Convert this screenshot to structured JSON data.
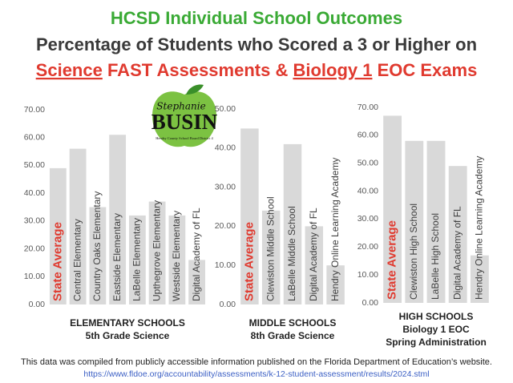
{
  "header": {
    "line1": "HCSD Individual School Outcomes",
    "line2": "Percentage of Students who Scored a 3 or Higher on",
    "line3": [
      "Science",
      " FAST Assessments & ",
      "Biology 1",
      " EOC Exams"
    ]
  },
  "logo": {
    "script": "Stephanie",
    "name": "BUSIN",
    "caption": "Hendry County School Board District 4"
  },
  "chart_data": [
    {
      "type": "bar",
      "xlabel": [
        "ELEMENTARY SCHOOLS",
        "5th Grade Science"
      ],
      "categories": [
        "State Average",
        "Central Elementary",
        "Country Oaks Elementary",
        "Eastside Elementary",
        "LaBelle Elementary",
        "Upthegrove Elementary",
        "Westside Elementary",
        "Digital Academy of FL"
      ],
      "values": [
        49,
        56,
        35,
        61,
        32,
        37,
        32,
        16
      ],
      "color": "#d9d9d9",
      "ylim": [
        0,
        70
      ],
      "yticks": [
        {
          "value": 0,
          "label": "0.00"
        },
        {
          "value": 10,
          "label": "10.00"
        },
        {
          "value": 20,
          "label": "20.00"
        },
        {
          "value": 30,
          "label": "30.00"
        },
        {
          "value": 40,
          "label": "40.00"
        },
        {
          "value": 50,
          "label": "50.00"
        },
        {
          "value": 60,
          "label": "60.00"
        },
        {
          "value": 70,
          "label": "70.00"
        }
      ]
    },
    {
      "type": "bar",
      "xlabel": [
        "MIDDLE SCHOOLS",
        "8th Grade Science"
      ],
      "categories": [
        "State Average",
        "Clewiston Middle School",
        "LaBelle  Middle School",
        "Digital Academy of FL",
        "Hendry Online Learning Academy"
      ],
      "values": [
        45,
        24,
        41,
        20,
        10
      ],
      "color": "#d9d9d9",
      "ylim": [
        0,
        50
      ],
      "yticks": [
        {
          "value": 0,
          "label": "0.00"
        },
        {
          "value": 10,
          "label": "10.00"
        },
        {
          "value": 20,
          "label": "20.00"
        },
        {
          "value": 30,
          "label": "30.00"
        },
        {
          "value": 40,
          "label": "40.00"
        },
        {
          "value": 50,
          "label": "50.00"
        }
      ]
    },
    {
      "type": "bar",
      "xlabel": [
        "HIGH SCHOOLS",
        "Biology 1 EOC",
        "Spring Administration"
      ],
      "categories": [
        "State Average",
        "Clewiston High School",
        "LaBelle High School",
        "Digital Academy of FL",
        "Hendry Online Learning Academy"
      ],
      "values": [
        67,
        58,
        58,
        49,
        17
      ],
      "color": "#d9d9d9",
      "ylim": [
        0,
        70
      ],
      "yticks": [
        {
          "value": 0,
          "label": "0.00"
        },
        {
          "value": 10,
          "label": "10.00"
        },
        {
          "value": 20,
          "label": "20.00"
        },
        {
          "value": 30,
          "label": "30.00"
        },
        {
          "value": 40,
          "label": "40.00"
        },
        {
          "value": 50,
          "label": "50.00"
        },
        {
          "value": 60,
          "label": "60.00"
        },
        {
          "value": 70,
          "label": "70.00"
        }
      ]
    }
  ],
  "footer": {
    "note": "This data was compiled from publicly accessible information published on the Florida Department of Education’s website.",
    "url": "https://www.fldoe.org/accountability/assessments/k-12-student-assessment/results/2024.stml"
  }
}
